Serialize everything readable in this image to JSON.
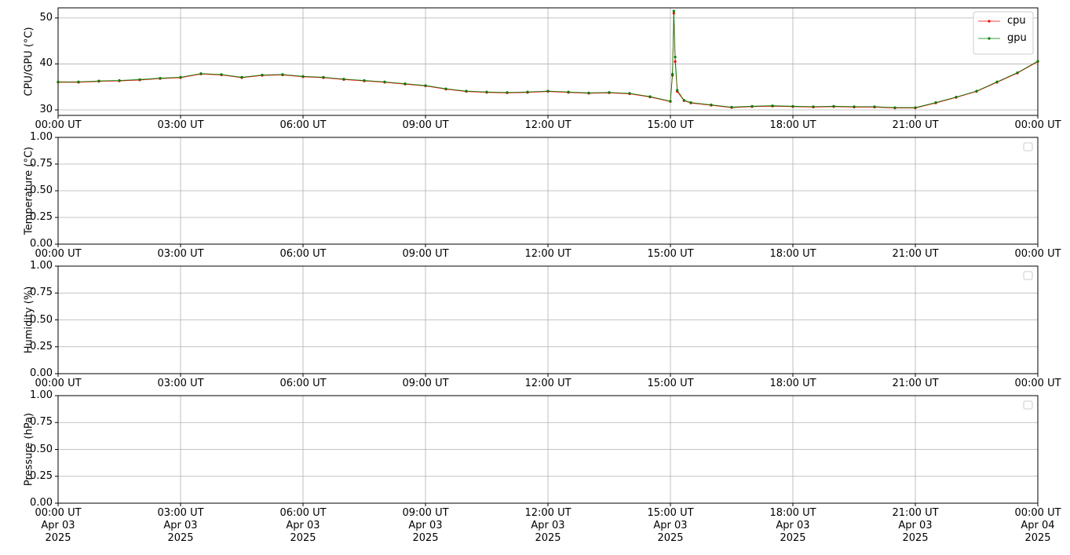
{
  "chart_data": [
    {
      "type": "line",
      "ylabel": "CPU/GPU (°C)",
      "x": [
        "2025-04-03 00:00",
        "2025-04-03 00:30",
        "2025-04-03 01:00",
        "2025-04-03 01:30",
        "2025-04-03 02:00",
        "2025-04-03 02:30",
        "2025-04-03 03:00",
        "2025-04-03 03:30",
        "2025-04-03 04:00",
        "2025-04-03 04:30",
        "2025-04-03 05:00",
        "2025-04-03 05:30",
        "2025-04-03 06:00",
        "2025-04-03 06:30",
        "2025-04-03 07:00",
        "2025-04-03 07:30",
        "2025-04-03 08:00",
        "2025-04-03 08:30",
        "2025-04-03 09:00",
        "2025-04-03 09:30",
        "2025-04-03 10:00",
        "2025-04-03 10:30",
        "2025-04-03 11:00",
        "2025-04-03 11:30",
        "2025-04-03 12:00",
        "2025-04-03 12:30",
        "2025-04-03 13:00",
        "2025-04-03 13:30",
        "2025-04-03 14:00",
        "2025-04-03 14:30",
        "2025-04-03 15:00",
        "2025-04-03 15:03",
        "2025-04-03 15:05",
        "2025-04-03 15:07",
        "2025-04-03 15:10",
        "2025-04-03 15:20",
        "2025-04-03 15:30",
        "2025-04-03 16:00",
        "2025-04-03 16:30",
        "2025-04-03 17:00",
        "2025-04-03 17:30",
        "2025-04-03 18:00",
        "2025-04-03 18:30",
        "2025-04-03 19:00",
        "2025-04-03 19:30",
        "2025-04-03 20:00",
        "2025-04-03 20:30",
        "2025-04-03 21:00",
        "2025-04-03 21:30",
        "2025-04-03 22:00",
        "2025-04-03 22:30",
        "2025-04-03 23:00",
        "2025-04-03 23:30",
        "2025-04-04 00:00"
      ],
      "series": [
        {
          "name": "cpu",
          "color": "#ff0000",
          "values": [
            36,
            36,
            36.2,
            36.3,
            36.5,
            36.8,
            37,
            37.8,
            37.6,
            37,
            37.5,
            37.6,
            37.2,
            37,
            36.6,
            36.3,
            36,
            35.6,
            35.2,
            34.5,
            34,
            33.8,
            33.7,
            33.8,
            34,
            33.8,
            33.6,
            33.7,
            33.5,
            32.8,
            31.8,
            37.5,
            51,
            40.5,
            34,
            32,
            31.5,
            31,
            30.5,
            30.7,
            30.8,
            30.7,
            30.6,
            30.7,
            30.6,
            30.6,
            30.4,
            30.4,
            31.5,
            32.7,
            34,
            36,
            38,
            40.5
          ]
        },
        {
          "name": "gpu",
          "color": "#008000",
          "values": [
            36.1,
            36.1,
            36.3,
            36.4,
            36.6,
            36.9,
            37.1,
            37.9,
            37.7,
            37.1,
            37.6,
            37.7,
            37.3,
            37.1,
            36.7,
            36.4,
            36.1,
            35.7,
            35.3,
            34.6,
            34.1,
            33.9,
            33.8,
            33.9,
            34.1,
            33.9,
            33.7,
            33.8,
            33.6,
            32.9,
            31.9,
            37.8,
            51.5,
            41.5,
            34.3,
            32.1,
            31.6,
            31.1,
            30.6,
            30.8,
            30.9,
            30.8,
            30.7,
            30.8,
            30.7,
            30.7,
            30.5,
            30.5,
            31.6,
            32.8,
            34.1,
            36.1,
            38.1,
            40.6
          ]
        }
      ],
      "ylim": [
        28.8,
        52.2
      ],
      "yticks": [
        30,
        40,
        50
      ],
      "xlim": [
        "2025-04-03 00:00",
        "2025-04-04 00:00"
      ],
      "xticks": [
        {
          "value": "2025-04-03 00:00",
          "label": "00:00 UT"
        },
        {
          "value": "2025-04-03 03:00",
          "label": "03:00 UT"
        },
        {
          "value": "2025-04-03 06:00",
          "label": "06:00 UT"
        },
        {
          "value": "2025-04-03 09:00",
          "label": "09:00 UT"
        },
        {
          "value": "2025-04-03 12:00",
          "label": "12:00 UT"
        },
        {
          "value": "2025-04-03 15:00",
          "label": "15:00 UT"
        },
        {
          "value": "2025-04-03 18:00",
          "label": "18:00 UT"
        },
        {
          "value": "2025-04-03 21:00",
          "label": "21:00 UT"
        },
        {
          "value": "2025-04-04 00:00",
          "label": "00:00 UT"
        }
      ],
      "grid": true,
      "legend": "upper right"
    },
    {
      "type": "line",
      "ylabel": "Temperature (°C)",
      "series": [],
      "ylim": [
        0,
        1
      ],
      "yticks": [
        {
          "value": 0,
          "label": "0.00"
        },
        {
          "value": 0.25,
          "label": "0.25"
        },
        {
          "value": 0.5,
          "label": "0.50"
        },
        {
          "value": 0.75,
          "label": "0.75"
        },
        {
          "value": 1,
          "label": "1.00"
        }
      ],
      "xlim": [
        "2025-04-03 00:00",
        "2025-04-04 00:00"
      ],
      "xticks": [
        {
          "value": "2025-04-03 00:00",
          "label": "00:00 UT"
        },
        {
          "value": "2025-04-03 03:00",
          "label": "03:00 UT"
        },
        {
          "value": "2025-04-03 06:00",
          "label": "06:00 UT"
        },
        {
          "value": "2025-04-03 09:00",
          "label": "09:00 UT"
        },
        {
          "value": "2025-04-03 12:00",
          "label": "12:00 UT"
        },
        {
          "value": "2025-04-03 15:00",
          "label": "15:00 UT"
        },
        {
          "value": "2025-04-03 18:00",
          "label": "18:00 UT"
        },
        {
          "value": "2025-04-03 21:00",
          "label": "21:00 UT"
        },
        {
          "value": "2025-04-04 00:00",
          "label": "00:00 UT"
        }
      ],
      "grid": true,
      "legend": "upper right"
    },
    {
      "type": "line",
      "ylabel": "Humidity (%)",
      "series": [],
      "ylim": [
        0,
        1
      ],
      "yticks": [
        {
          "value": 0,
          "label": "0.00"
        },
        {
          "value": 0.25,
          "label": "0.25"
        },
        {
          "value": 0.5,
          "label": "0.50"
        },
        {
          "value": 0.75,
          "label": "0.75"
        },
        {
          "value": 1,
          "label": "1.00"
        }
      ],
      "xlim": [
        "2025-04-03 00:00",
        "2025-04-04 00:00"
      ],
      "xticks": [
        {
          "value": "2025-04-03 00:00",
          "label": "00:00 UT"
        },
        {
          "value": "2025-04-03 03:00",
          "label": "03:00 UT"
        },
        {
          "value": "2025-04-03 06:00",
          "label": "06:00 UT"
        },
        {
          "value": "2025-04-03 09:00",
          "label": "09:00 UT"
        },
        {
          "value": "2025-04-03 12:00",
          "label": "12:00 UT"
        },
        {
          "value": "2025-04-03 15:00",
          "label": "15:00 UT"
        },
        {
          "value": "2025-04-03 18:00",
          "label": "18:00 UT"
        },
        {
          "value": "2025-04-03 21:00",
          "label": "21:00 UT"
        },
        {
          "value": "2025-04-04 00:00",
          "label": "00:00 UT"
        }
      ],
      "grid": true,
      "legend": "upper right"
    },
    {
      "type": "line",
      "ylabel": "Pressure (hPa)",
      "series": [],
      "ylim": [
        0,
        1
      ],
      "yticks": [
        {
          "value": 0,
          "label": "0.00"
        },
        {
          "value": 0.25,
          "label": "0.25"
        },
        {
          "value": 0.5,
          "label": "0.50"
        },
        {
          "value": 0.75,
          "label": "0.75"
        },
        {
          "value": 1,
          "label": "1.00"
        }
      ],
      "xlim": [
        "2025-04-03 00:00",
        "2025-04-04 00:00"
      ],
      "xticks": [
        {
          "value": "2025-04-03 00:00",
          "label": "00:00 UT\nApr 03\n2025"
        },
        {
          "value": "2025-04-03 03:00",
          "label": "03:00 UT\nApr 03\n2025"
        },
        {
          "value": "2025-04-03 06:00",
          "label": "06:00 UT\nApr 03\n2025"
        },
        {
          "value": "2025-04-03 09:00",
          "label": "09:00 UT\nApr 03\n2025"
        },
        {
          "value": "2025-04-03 12:00",
          "label": "12:00 UT\nApr 03\n2025"
        },
        {
          "value": "2025-04-03 15:00",
          "label": "15:00 UT\nApr 03\n2025"
        },
        {
          "value": "2025-04-03 18:00",
          "label": "18:00 UT\nApr 03\n2025"
        },
        {
          "value": "2025-04-03 21:00",
          "label": "21:00 UT\nApr 03\n2025"
        },
        {
          "value": "2025-04-04 00:00",
          "label": "00:00 UT\nApr 04\n2025"
        }
      ],
      "grid": true,
      "legend": "upper right"
    }
  ]
}
